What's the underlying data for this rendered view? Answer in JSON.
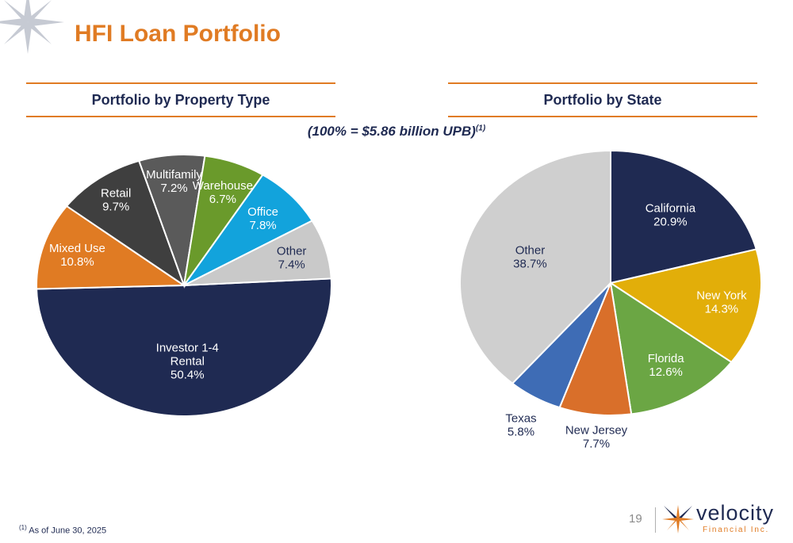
{
  "page": {
    "title": "HFI Loan Portfolio",
    "page_number": "19"
  },
  "sections": {
    "left_header": "Portfolio by Property Type",
    "right_header": "Portfolio by State"
  },
  "subtitle": {
    "text": "(100% = $5.86 billion UPB)",
    "footnote_marker": "(1)"
  },
  "footnote": {
    "marker": "(1)",
    "text": "As of June 30, 2025"
  },
  "logo": {
    "word": "velocity",
    "sub": "Financial Inc."
  },
  "colors": {
    "accent": "#E07B23",
    "navy": "#1F2A52"
  },
  "chart_data": [
    {
      "type": "pie",
      "title": "Portfolio by Property Type",
      "slices": [
        {
          "label": "Investor 1-4 Rental",
          "line1": "Investor 1-4",
          "line2": "Rental",
          "value": 50.4,
          "display": "50.4%",
          "color": "#1F2A52",
          "text_color": "#ffffff"
        },
        {
          "label": "Mixed Use",
          "value": 10.8,
          "display": "10.8%",
          "color": "#E07B23",
          "text_color": "#ffffff"
        },
        {
          "label": "Retail",
          "value": 9.7,
          "display": "9.7%",
          "color": "#3F3F3F",
          "text_color": "#ffffff"
        },
        {
          "label": "Multifamily",
          "value": 7.2,
          "display": "7.2%",
          "color": "#5A5A5A",
          "text_color": "#ffffff"
        },
        {
          "label": "Warehouse",
          "value": 6.7,
          "display": "6.7%",
          "color": "#6A9A2B",
          "text_color": "#ffffff"
        },
        {
          "label": "Office",
          "value": 7.8,
          "display": "7.8%",
          "color": "#12A3DC",
          "text_color": "#ffffff"
        },
        {
          "label": "Other",
          "value": 7.4,
          "display": "7.4%",
          "color": "#C9C9C9",
          "text_color": "#1F2A52"
        }
      ]
    },
    {
      "type": "pie",
      "title": "Portfolio by State",
      "slices": [
        {
          "label": "California",
          "value": 20.9,
          "display": "20.9%",
          "color": "#1F2A52",
          "text_color": "#ffffff"
        },
        {
          "label": "New York",
          "value": 14.3,
          "display": "14.3%",
          "color": "#E2AE09",
          "text_color": "#ffffff"
        },
        {
          "label": "Florida",
          "value": 12.6,
          "display": "12.6%",
          "color": "#6BA644",
          "text_color": "#ffffff"
        },
        {
          "label": "New Jersey",
          "value": 7.7,
          "display": "7.7%",
          "color": "#D96F2A",
          "text_color": "#1F2A52"
        },
        {
          "label": "Texas",
          "value": 5.8,
          "display": "5.8%",
          "color": "#3E6CB5",
          "text_color": "#1F2A52"
        },
        {
          "label": "Other",
          "value": 38.7,
          "display": "38.7%",
          "color": "#CFCFCF",
          "text_color": "#1F2A52"
        }
      ]
    }
  ]
}
